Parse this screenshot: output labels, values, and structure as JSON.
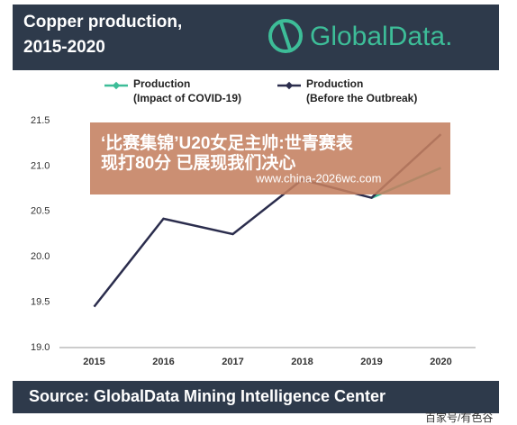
{
  "chart_data": {
    "type": "line",
    "title_lines": [
      "Copper production,",
      "2015-2020"
    ],
    "logo": "GlobalData.",
    "source": "Source:  GlobalData Mining Intelligence Center",
    "categories": [
      "2015",
      "2016",
      "2017",
      "2018",
      "2019",
      "2020"
    ],
    "series": [
      {
        "name": "Production",
        "detail": "(Impact of COVID-19)",
        "color": "#3dbd98",
        "values": [
          null,
          null,
          null,
          null,
          20.65,
          20.98
        ]
      },
      {
        "name": "Production",
        "detail": "(Before the Outbreak)",
        "color": "#2b2d4d",
        "values": [
          19.45,
          20.42,
          20.25,
          20.85,
          20.65,
          21.35
        ]
      }
    ],
    "ylim": [
      19.0,
      21.5
    ],
    "yticks": [
      {
        "value": 19,
        "label": "19.0"
      },
      19.5,
      {
        "value": 20,
        "label": "20.0"
      },
      20.5,
      {
        "value": 21,
        "label": "21.0"
      },
      21.5
    ],
    "watermark": {
      "line1": "‘比赛集锦’U20女足主帅:世青赛表",
      "line2": "现打80分 已展现我们决心",
      "url": "www.china-2026wc.com"
    },
    "credit": "百家号/有色谷"
  }
}
